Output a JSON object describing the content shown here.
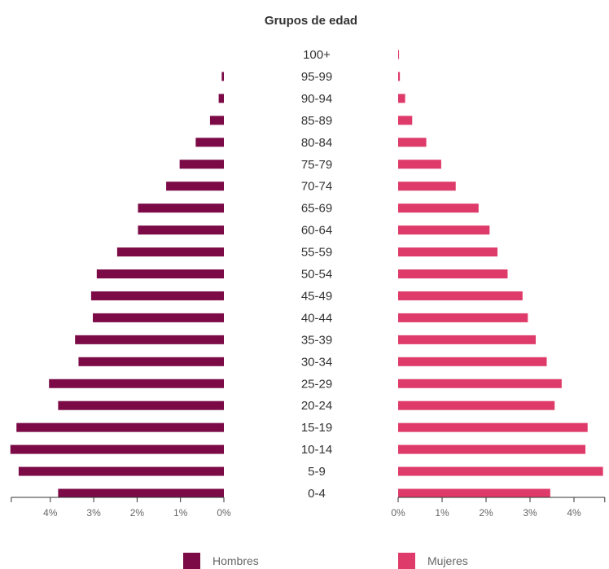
{
  "chart_data": {
    "type": "bar",
    "orientation": "horizontal-population-pyramid",
    "title": "Grupos de edad",
    "categories": [
      "100+",
      "95-99",
      "90-94",
      "85-89",
      "80-84",
      "75-79",
      "70-74",
      "65-69",
      "60-64",
      "55-59",
      "50-54",
      "45-49",
      "40-44",
      "35-39",
      "30-34",
      "25-29",
      "20-24",
      "15-19",
      "10-14",
      "5-9",
      "0-4"
    ],
    "series": [
      {
        "name": "Hombres",
        "color": "#7b0a46",
        "side": "left",
        "values": [
          0.0,
          0.05,
          0.12,
          0.32,
          0.65,
          1.02,
          1.33,
          1.98,
          1.98,
          2.46,
          2.93,
          3.06,
          3.02,
          3.43,
          3.35,
          4.03,
          3.82,
          4.78,
          4.92,
          4.73,
          3.82
        ]
      },
      {
        "name": "Mujeres",
        "color": "#df3b6a",
        "side": "right",
        "values": [
          0.02,
          0.04,
          0.16,
          0.32,
          0.64,
          0.98,
          1.31,
          1.83,
          2.08,
          2.26,
          2.49,
          2.83,
          2.95,
          3.13,
          3.38,
          3.72,
          3.56,
          4.31,
          4.26,
          4.66,
          3.46
        ]
      }
    ],
    "left_axis": {
      "ticks": [
        4,
        3,
        2,
        1,
        0
      ],
      "tick_labels": [
        "4%",
        "3%",
        "2%",
        "1%",
        "0%"
      ],
      "range": [
        0,
        4.9
      ]
    },
    "right_axis": {
      "ticks": [
        0,
        1,
        2,
        3,
        4
      ],
      "tick_labels": [
        "0%",
        "1%",
        "2%",
        "3%",
        "4%"
      ],
      "range": [
        0,
        4.7
      ]
    },
    "grid": false,
    "legend_position": "bottom"
  }
}
